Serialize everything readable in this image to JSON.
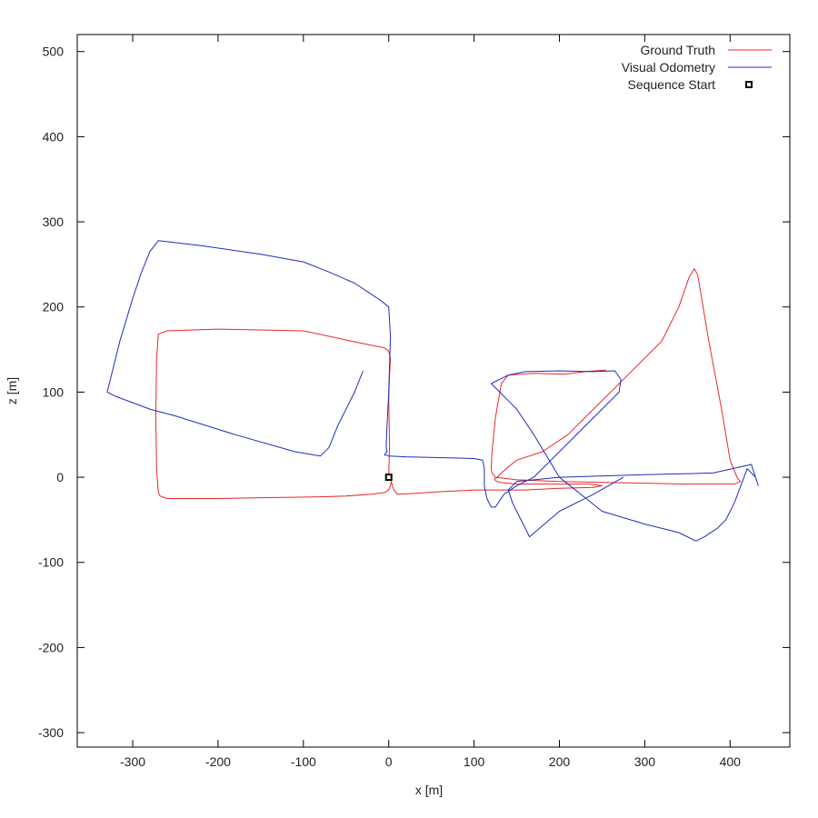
{
  "chart_data": {
    "type": "line",
    "title": "",
    "xlabel": "x [m]",
    "ylabel": "z [m]",
    "xlim": [
      -365,
      470
    ],
    "ylim": [
      -317,
      520
    ],
    "xticks": [
      -300,
      -200,
      -100,
      0,
      100,
      200,
      300,
      400
    ],
    "yticks": [
      -300,
      -200,
      -100,
      0,
      100,
      200,
      300,
      400,
      500
    ],
    "grid": false,
    "legend_position": "top-right",
    "colors": {
      "ground_truth": "#e8272a",
      "visual_odometry": "#1f2dbf",
      "start_marker": "#000000",
      "frame": "#000000"
    },
    "legend": [
      {
        "label": "Ground Truth",
        "kind": "line",
        "color": "#e8272a"
      },
      {
        "label": "Visual Odometry",
        "kind": "line",
        "color": "#1f2dbf"
      },
      {
        "label": "Sequence Start",
        "kind": "square",
        "color": "#000000"
      }
    ],
    "series": [
      {
        "name": "Ground Truth",
        "color": "#e8272a",
        "x": [
          0,
          1,
          0,
          1,
          2,
          0,
          -5,
          -30,
          -100,
          -200,
          -260,
          -270,
          -272,
          -273,
          -272,
          -270,
          -268,
          -260,
          -200,
          -150,
          -80,
          -50,
          -20,
          -5,
          0,
          2,
          3,
          6,
          10,
          30,
          60,
          80,
          100,
          120,
          160,
          200,
          240,
          250,
          235,
          200,
          150,
          130,
          125,
          124,
          127,
          133,
          140,
          150,
          180,
          210,
          240,
          280,
          320,
          340,
          352,
          358,
          362,
          375,
          390,
          400,
          408,
          412,
          405,
          350,
          300,
          250,
          200,
          150,
          125,
          121,
          120,
          121,
          125,
          132,
          140,
          170,
          205,
          230,
          255
        ],
        "y": [
          0,
          40,
          90,
          120,
          140,
          148,
          152,
          157,
          172,
          174,
          172,
          168,
          140,
          70,
          10,
          -18,
          -22,
          -25,
          -25,
          -24,
          -23,
          -22,
          -20,
          -18,
          -15,
          -10,
          -5,
          -15,
          -20,
          -19,
          -17,
          -16,
          -15,
          -15,
          -15,
          -13,
          -12,
          -10,
          -8,
          -8,
          -8,
          -6,
          -4,
          -2,
          0,
          6,
          12,
          20,
          30,
          50,
          80,
          120,
          160,
          200,
          235,
          245,
          238,
          160,
          80,
          20,
          0,
          -5,
          -8,
          -8,
          -7,
          -6,
          -5,
          -3,
          0,
          5,
          10,
          30,
          70,
          110,
          120,
          122,
          121,
          124,
          126
        ]
      },
      {
        "name": "Visual Odometry",
        "color": "#1f2dbf",
        "x": [
          -30,
          -40,
          -60,
          -70,
          -80,
          -110,
          -180,
          -250,
          -280,
          -320,
          -330,
          -325,
          -315,
          -300,
          -290,
          -280,
          -270,
          -220,
          -150,
          -100,
          -70,
          -40,
          -10,
          0,
          2,
          0,
          -2,
          -3,
          -2,
          -4,
          -5,
          -3,
          0,
          20,
          60,
          100,
          110,
          112,
          112,
          115,
          120,
          125,
          135,
          150,
          170,
          210,
          250,
          270,
          272,
          265,
          240,
          200,
          160,
          140,
          120,
          130,
          140,
          150,
          170,
          200,
          250,
          300,
          340,
          360,
          370,
          385,
          395,
          405,
          420,
          430,
          433,
          425,
          380,
          300,
          200,
          150,
          140,
          145,
          150,
          165,
          200,
          240,
          275
        ],
        "y": [
          125,
          100,
          60,
          35,
          25,
          30,
          50,
          72,
          80,
          95,
          100,
          120,
          160,
          210,
          240,
          265,
          278,
          272,
          262,
          253,
          241,
          228,
          208,
          200,
          165,
          100,
          60,
          35,
          30,
          28,
          26,
          26,
          25,
          24,
          23,
          22,
          20,
          10,
          -10,
          -25,
          -35,
          -35,
          -20,
          -10,
          0,
          40,
          80,
          100,
          115,
          125,
          124,
          125,
          124,
          120,
          110,
          100,
          90,
          80,
          50,
          0,
          -40,
          -55,
          -65,
          -75,
          -70,
          -60,
          -50,
          -30,
          10,
          0,
          -10,
          15,
          5,
          3,
          0,
          -5,
          -15,
          -30,
          -40,
          -70,
          -40,
          -20,
          0
        ]
      }
    ],
    "start_point": {
      "name": "Sequence Start",
      "x": 0,
      "y": 0
    }
  }
}
